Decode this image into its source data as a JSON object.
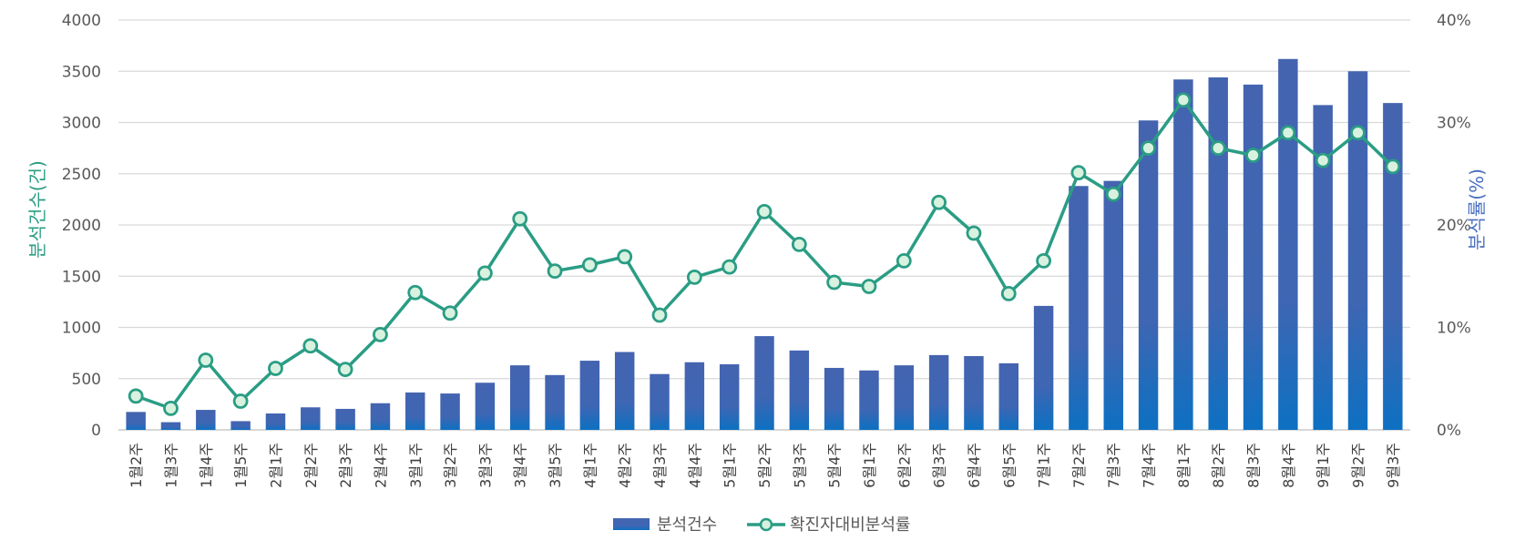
{
  "chart_data": {
    "type": "bar",
    "categories": [
      "1월2주",
      "1월3주",
      "1월4주",
      "1월5주",
      "2월1주",
      "2월2주",
      "2월3주",
      "2월4주",
      "3월1주",
      "3월2주",
      "3월3주",
      "3월4주",
      "3월5주",
      "4월1주",
      "4월2주",
      "4월3주",
      "4월4주",
      "5월1주",
      "5월2주",
      "5월3주",
      "5월4주",
      "6월1주",
      "6월2주",
      "6월3주",
      "6월4주",
      "6월5주",
      "7월1주",
      "7월2주",
      "7월3주",
      "7월4주",
      "8월1주",
      "8월2주",
      "8월3주",
      "8월4주",
      "9월1주",
      "9월2주",
      "9월3주"
    ],
    "series": [
      {
        "name": "분석건수",
        "type": "bar",
        "axis": "left",
        "values": [
          175,
          75,
          195,
          85,
          160,
          220,
          205,
          260,
          365,
          355,
          460,
          630,
          535,
          675,
          760,
          545,
          660,
          640,
          915,
          775,
          605,
          580,
          630,
          730,
          720,
          650,
          1210,
          2380,
          2430,
          3020,
          3420,
          3440,
          3370,
          3620,
          3170,
          3500,
          3190
        ]
      },
      {
        "name": "확진자대비분석률",
        "type": "line",
        "axis": "right",
        "values": [
          3.3,
          2.1,
          6.8,
          2.8,
          6.0,
          8.2,
          5.9,
          9.3,
          13.4,
          11.4,
          15.3,
          20.6,
          15.5,
          16.1,
          16.9,
          11.2,
          14.9,
          15.9,
          21.3,
          18.1,
          14.4,
          14.0,
          16.5,
          22.2,
          19.2,
          13.3,
          16.5,
          25.1,
          23.0,
          27.5,
          32.2,
          27.5,
          26.8,
          29.0,
          26.3,
          29.0,
          25.7
        ]
      }
    ],
    "ylabel_left": "분석건수(건)",
    "ylabel_right": "분석률(%)",
    "ylim_left": [
      0,
      4000
    ],
    "ylim_right": [
      0,
      40
    ],
    "yticks_left": [
      "0",
      "500",
      "1000",
      "1500",
      "2000",
      "2500",
      "3000",
      "3500",
      "4000"
    ],
    "yticks_right": [
      "0%",
      "10%",
      "20%",
      "30%",
      "40%"
    ],
    "grid": true,
    "legend_position": "bottom",
    "colors": {
      "bar_top": "#4464b0",
      "bar_bottom": "#0d70c2",
      "line": "#2a9d84",
      "marker_fill": "#d8f2df",
      "grid": "#d9d9d9"
    }
  }
}
